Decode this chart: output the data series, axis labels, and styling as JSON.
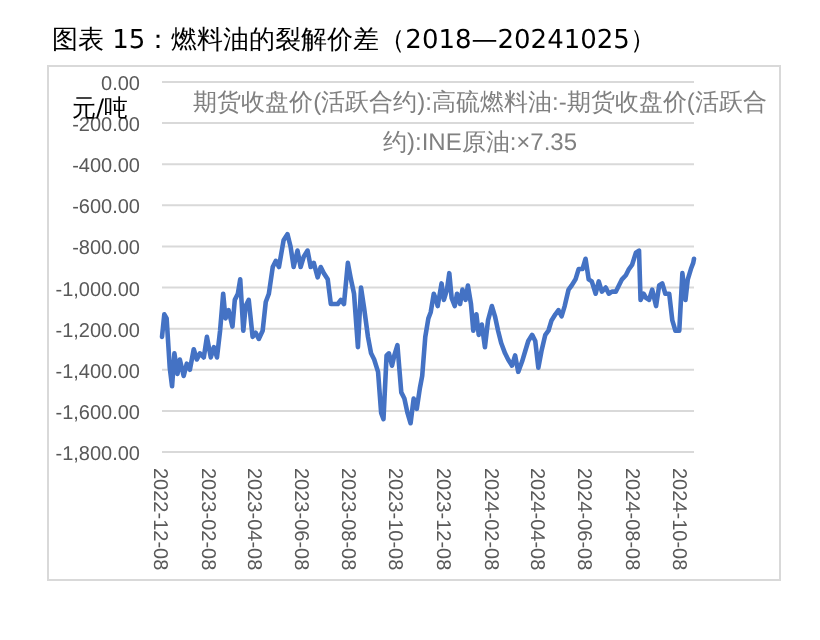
{
  "chart_data": {
    "type": "line",
    "title": "图表 15：燃料油的裂解价差（2018—20241025）",
    "ylabel": "元/吨",
    "annotations": [
      "期货收盘价(活跃合约):高硫燃料油:-期货收盘价(活跃合约):INE原油:×7.35"
    ],
    "xlim": [
      "2022-12-08",
      "2024-10-25"
    ],
    "xticks": [
      {
        "value": "2022-12-08",
        "label": "2022-12-08"
      },
      {
        "value": "2023-02-08",
        "label": "2023-02-08"
      },
      {
        "value": "2023-04-08",
        "label": "2023-04-08"
      },
      {
        "value": "2023-06-08",
        "label": "2023-06-08"
      },
      {
        "value": "2023-08-08",
        "label": "2023-08-08"
      },
      {
        "value": "2023-10-08",
        "label": "2023-10-08"
      },
      {
        "value": "2023-12-08",
        "label": "2023-12-08"
      },
      {
        "value": "2024-02-08",
        "label": "2024-02-08"
      },
      {
        "value": "2024-04-08",
        "label": "2024-04-08"
      },
      {
        "value": "2024-06-08",
        "label": "2024-06-08"
      },
      {
        "value": "2024-08-08",
        "label": "2024-08-08"
      },
      {
        "value": "2024-10-08",
        "label": "2024-10-08"
      }
    ],
    "ylim": [
      -1800,
      0
    ],
    "yticks": [
      {
        "value": 0,
        "label": "0.00"
      },
      {
        "value": -200,
        "label": "-200.00"
      },
      {
        "value": -400,
        "label": "-400.00"
      },
      {
        "value": -600,
        "label": "-600.00"
      },
      {
        "value": -800,
        "label": "-800.00"
      },
      {
        "value": -1000,
        "label": "-1,000.00"
      },
      {
        "value": -1200,
        "label": "-1,200.00"
      },
      {
        "value": -1400,
        "label": "-1,400.00"
      },
      {
        "value": -1600,
        "label": "-1,600.00"
      },
      {
        "value": -1800,
        "label": "-1,800.00"
      }
    ],
    "grid": "y",
    "marker": "none",
    "line_style": "solid",
    "series": [
      {
        "color": "#4472c4",
        "x": [
          "2022-12-08",
          "2022-12-11",
          "2022-12-14",
          "2022-12-18",
          "2022-12-21",
          "2022-12-24",
          "2022-12-28",
          "2022-12-31",
          "2023-01-05",
          "2023-01-09",
          "2023-01-13",
          "2023-01-18",
          "2023-01-22",
          "2023-01-26",
          "2023-01-31",
          "2023-02-04",
          "2023-02-09",
          "2023-02-13",
          "2023-02-17",
          "2023-02-21",
          "2023-02-25",
          "2023-02-28",
          "2023-03-04",
          "2023-03-09",
          "2023-03-12",
          "2023-03-16",
          "2023-03-19",
          "2023-03-23",
          "2023-03-26",
          "2023-03-30",
          "2023-04-04",
          "2023-04-08",
          "2023-04-12",
          "2023-04-17",
          "2023-04-21",
          "2023-04-25",
          "2023-04-30",
          "2023-05-04",
          "2023-05-08",
          "2023-05-14",
          "2023-05-19",
          "2023-05-23",
          "2023-05-27",
          "2023-06-01",
          "2023-06-05",
          "2023-06-09",
          "2023-06-14",
          "2023-06-18",
          "2023-06-22",
          "2023-06-27",
          "2023-07-01",
          "2023-07-05",
          "2023-07-10",
          "2023-07-14",
          "2023-07-18",
          "2023-07-23",
          "2023-07-27",
          "2023-07-31",
          "2023-08-05",
          "2023-08-09",
          "2023-08-13",
          "2023-08-18",
          "2023-08-22",
          "2023-08-26",
          "2023-08-31",
          "2023-09-04",
          "2023-09-08",
          "2023-09-13",
          "2023-09-17",
          "2023-09-20",
          "2023-09-24",
          "2023-09-27",
          "2023-10-01",
          "2023-10-04",
          "2023-10-08",
          "2023-10-13",
          "2023-10-17",
          "2023-10-21",
          "2023-10-25",
          "2023-10-29",
          "2023-11-02",
          "2023-11-06",
          "2023-11-09",
          "2023-11-13",
          "2023-11-17",
          "2023-11-20",
          "2023-11-24",
          "2023-11-27",
          "2023-11-29",
          "2023-12-04",
          "2023-12-07",
          "2023-12-11",
          "2023-12-14",
          "2023-12-17",
          "2023-12-21",
          "2023-12-24",
          "2023-12-28",
          "2023-12-31",
          "2024-01-04",
          "2024-01-07",
          "2024-01-11",
          "2024-01-14",
          "2024-01-18",
          "2024-01-21",
          "2024-01-25",
          "2024-01-29",
          "2024-02-02",
          "2024-02-07",
          "2024-02-11",
          "2024-02-15",
          "2024-02-19",
          "2024-02-24",
          "2024-02-28",
          "2024-03-04",
          "2024-03-08",
          "2024-03-12",
          "2024-03-17",
          "2024-03-21",
          "2024-03-25",
          "2024-03-30",
          "2024-04-03",
          "2024-04-07",
          "2024-04-11",
          "2024-04-16",
          "2024-04-20",
          "2024-04-24",
          "2024-04-29",
          "2024-05-03",
          "2024-05-07",
          "2024-05-11",
          "2024-05-16",
          "2024-05-20",
          "2024-05-25",
          "2024-05-29",
          "2024-06-03",
          "2024-06-07",
          "2024-06-11",
          "2024-06-15",
          "2024-06-20",
          "2024-06-24",
          "2024-06-28",
          "2024-07-03",
          "2024-07-07",
          "2024-07-11",
          "2024-07-16",
          "2024-07-20",
          "2024-07-24",
          "2024-07-29",
          "2024-08-02",
          "2024-08-06",
          "2024-08-11",
          "2024-08-15",
          "2024-08-17",
          "2024-08-21",
          "2024-08-24",
          "2024-08-28",
          "2024-09-01",
          "2024-09-06",
          "2024-09-10",
          "2024-09-14",
          "2024-09-18",
          "2024-09-23",
          "2024-09-27",
          "2024-10-01",
          "2024-10-06",
          "2024-10-10",
          "2024-10-14",
          "2024-10-17",
          "2024-10-21",
          "2024-10-24",
          "2024-10-25"
        ],
        "values": [
          -1240,
          -1130,
          -1150,
          -1390,
          -1480,
          -1320,
          -1420,
          -1350,
          -1430,
          -1370,
          -1400,
          -1300,
          -1350,
          -1320,
          -1340,
          -1240,
          -1340,
          -1290,
          -1340,
          -1210,
          -1030,
          -1150,
          -1110,
          -1190,
          -1060,
          -1030,
          -960,
          -1210,
          -1090,
          -1060,
          -1240,
          -1220,
          -1250,
          -1210,
          -1070,
          -1030,
          -900,
          -870,
          -900,
          -770,
          -740,
          -800,
          -900,
          -820,
          -900,
          -850,
          -820,
          -900,
          -880,
          -950,
          -900,
          -930,
          -960,
          -1080,
          -1080,
          -1080,
          -1060,
          -1080,
          -880,
          -960,
          -1030,
          -1290,
          -1000,
          -1100,
          -1240,
          -1320,
          -1350,
          -1410,
          -1610,
          -1640,
          -1330,
          -1320,
          -1380,
          -1330,
          -1280,
          -1510,
          -1540,
          -1610,
          -1660,
          -1540,
          -1590,
          -1490,
          -1430,
          -1240,
          -1150,
          -1120,
          -1030,
          -1060,
          -1090,
          -980,
          -1060,
          -1010,
          -930,
          -1050,
          -1090,
          -1030,
          -1080,
          -1010,
          -1060,
          -990,
          -1080,
          -1210,
          -1130,
          -1230,
          -1180,
          -1290,
          -1160,
          -1090,
          -1140,
          -1210,
          -1270,
          -1320,
          -1350,
          -1380,
          -1330,
          -1410,
          -1360,
          -1310,
          -1260,
          -1230,
          -1260,
          -1390,
          -1310,
          -1230,
          -1210,
          -1160,
          -1130,
          -1110,
          -1140,
          -1090,
          -1010,
          -990,
          -960,
          -910,
          -910,
          -860,
          -960,
          -970,
          -1030,
          -970,
          -1020,
          -1000,
          -1030,
          -1020,
          -1020,
          -990,
          -960,
          -940,
          -910,
          -890,
          -830,
          -820,
          -1060,
          -1030,
          -1050,
          -1060,
          -1010,
          -1090,
          -990,
          -980,
          -1030,
          -1030,
          -1160,
          -1210,
          -1210,
          -930,
          -1060,
          -960,
          -910,
          -880,
          -860
        ]
      }
    ]
  }
}
